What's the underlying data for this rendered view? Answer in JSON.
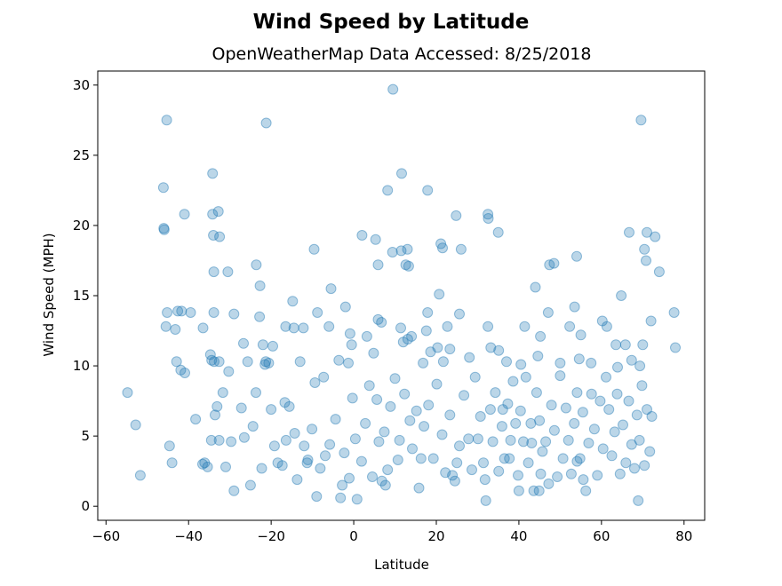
{
  "chart_data": {
    "type": "scatter",
    "title": "Wind Speed by Latitude",
    "subtitle": "OpenWeatherMap Data Accessed: 8/25/2018",
    "xlabel": "Latitude",
    "ylabel": "Wind Speed (MPH)",
    "xlim": [
      -62,
      85
    ],
    "ylim": [
      -1.0,
      31.0
    ],
    "xticks": [
      -60,
      -40,
      -20,
      0,
      20,
      40,
      60,
      80
    ],
    "yticks": [
      0,
      5,
      10,
      15,
      20,
      25,
      30
    ],
    "grid": false,
    "marker_color": "#1f77b4",
    "marker_alpha": 0.3,
    "series": [
      {
        "points": [
          [
            9.5,
            29.7
          ],
          [
            -45.3,
            27.5
          ],
          [
            -21.2,
            27.3
          ],
          [
            69.6,
            27.5
          ],
          [
            -46.1,
            22.7
          ],
          [
            -34.2,
            23.7
          ],
          [
            8.2,
            22.5
          ],
          [
            17.9,
            22.5
          ],
          [
            11.6,
            23.7
          ],
          [
            -41.0,
            20.8
          ],
          [
            -34.2,
            20.8
          ],
          [
            -32.8,
            21.0
          ],
          [
            -46.0,
            19.8
          ],
          [
            -45.9,
            19.7
          ],
          [
            -34.0,
            19.3
          ],
          [
            -32.5,
            19.2
          ],
          [
            2.0,
            19.3
          ],
          [
            5.3,
            19.0
          ],
          [
            24.8,
            20.7
          ],
          [
            32.5,
            20.8
          ],
          [
            32.6,
            20.5
          ],
          [
            35.0,
            19.5
          ],
          [
            66.7,
            19.5
          ],
          [
            71.0,
            19.5
          ],
          [
            73.0,
            19.2
          ],
          [
            9.4,
            18.1
          ],
          [
            11.5,
            18.2
          ],
          [
            13.0,
            18.3
          ],
          [
            21.1,
            18.7
          ],
          [
            21.5,
            18.4
          ],
          [
            26.0,
            18.3
          ],
          [
            -9.6,
            18.3
          ],
          [
            70.4,
            18.3
          ],
          [
            74.0,
            16.7
          ],
          [
            70.8,
            17.5
          ],
          [
            54.0,
            17.8
          ],
          [
            -33.9,
            16.7
          ],
          [
            -30.5,
            16.7
          ],
          [
            -23.6,
            17.2
          ],
          [
            5.9,
            17.2
          ],
          [
            12.6,
            17.2
          ],
          [
            13.3,
            17.1
          ],
          [
            47.4,
            17.2
          ],
          [
            48.5,
            17.3
          ],
          [
            -22.7,
            15.7
          ],
          [
            -5.5,
            15.5
          ],
          [
            20.7,
            15.1
          ],
          [
            44.0,
            15.6
          ],
          [
            64.8,
            15.0
          ],
          [
            -45.2,
            13.8
          ],
          [
            -42.6,
            13.9
          ],
          [
            -41.7,
            13.9
          ],
          [
            -39.5,
            13.8
          ],
          [
            -33.9,
            13.8
          ],
          [
            -29.0,
            13.7
          ],
          [
            -22.8,
            13.5
          ],
          [
            -14.8,
            14.6
          ],
          [
            -8.8,
            13.8
          ],
          [
            -2.0,
            14.2
          ],
          [
            5.9,
            13.3
          ],
          [
            6.7,
            13.1
          ],
          [
            17.9,
            13.8
          ],
          [
            25.6,
            13.7
          ],
          [
            47.1,
            13.8
          ],
          [
            53.5,
            14.2
          ],
          [
            60.2,
            13.2
          ],
          [
            77.6,
            13.8
          ],
          [
            72.0,
            13.2
          ],
          [
            -45.5,
            12.8
          ],
          [
            -43.2,
            12.6
          ],
          [
            -36.5,
            12.7
          ],
          [
            -26.7,
            11.6
          ],
          [
            -22.0,
            11.5
          ],
          [
            -16.5,
            12.8
          ],
          [
            -14.5,
            12.7
          ],
          [
            -12.2,
            12.7
          ],
          [
            -6.0,
            12.8
          ],
          [
            -0.9,
            12.3
          ],
          [
            -0.5,
            11.5
          ],
          [
            3.2,
            12.1
          ],
          [
            11.4,
            12.7
          ],
          [
            14.0,
            12.1
          ],
          [
            17.6,
            12.5
          ],
          [
            22.7,
            12.8
          ],
          [
            32.5,
            12.8
          ],
          [
            41.4,
            12.8
          ],
          [
            45.2,
            12.1
          ],
          [
            52.3,
            12.8
          ],
          [
            55.0,
            12.2
          ],
          [
            61.3,
            12.8
          ],
          [
            63.5,
            11.5
          ],
          [
            65.8,
            11.5
          ],
          [
            70.0,
            11.5
          ],
          [
            77.9,
            11.3
          ],
          [
            -42.9,
            10.3
          ],
          [
            -41.9,
            9.7
          ],
          [
            -40.9,
            9.5
          ],
          [
            -34.7,
            10.8
          ],
          [
            -34.4,
            10.4
          ],
          [
            -33.8,
            10.3
          ],
          [
            -32.6,
            10.3
          ],
          [
            -30.3,
            9.6
          ],
          [
            -25.7,
            10.3
          ],
          [
            -21.3,
            10.3
          ],
          [
            -20.6,
            10.2
          ],
          [
            -19.6,
            11.4
          ],
          [
            -13.0,
            10.3
          ],
          [
            -3.6,
            10.4
          ],
          [
            -1.3,
            10.2
          ],
          [
            4.8,
            10.9
          ],
          [
            12.0,
            11.7
          ],
          [
            13.1,
            11.9
          ],
          [
            16.8,
            10.2
          ],
          [
            18.6,
            11.0
          ],
          [
            20.3,
            11.3
          ],
          [
            21.7,
            10.3
          ],
          [
            23.3,
            11.2
          ],
          [
            28.0,
            10.6
          ],
          [
            33.2,
            11.3
          ],
          [
            35.1,
            11.1
          ],
          [
            37.0,
            10.3
          ],
          [
            40.5,
            10.1
          ],
          [
            44.6,
            10.7
          ],
          [
            50.0,
            10.2
          ],
          [
            54.6,
            10.5
          ],
          [
            57.5,
            10.2
          ],
          [
            63.9,
            9.9
          ],
          [
            67.3,
            10.4
          ],
          [
            69.3,
            10.0
          ],
          [
            -54.8,
            8.1
          ],
          [
            -52.8,
            5.8
          ],
          [
            -51.7,
            2.2
          ],
          [
            -44.6,
            4.3
          ],
          [
            -44.0,
            3.1
          ],
          [
            -38.3,
            6.2
          ],
          [
            -36.1,
            3.1
          ],
          [
            -35.4,
            2.8
          ],
          [
            -34.5,
            4.7
          ],
          [
            -33.6,
            6.5
          ],
          [
            -33.1,
            7.1
          ],
          [
            -32.6,
            4.7
          ],
          [
            -31.7,
            8.1
          ],
          [
            -29.7,
            4.6
          ],
          [
            -29.0,
            1.1
          ],
          [
            -27.2,
            7.0
          ],
          [
            -25.0,
            1.5
          ],
          [
            -24.4,
            5.7
          ],
          [
            -23.7,
            8.1
          ],
          [
            -22.3,
            2.7
          ],
          [
            -21.5,
            10.1
          ],
          [
            -20.0,
            6.9
          ],
          [
            -19.2,
            4.3
          ],
          [
            -18.4,
            3.1
          ],
          [
            -17.3,
            2.9
          ],
          [
            -16.7,
            7.4
          ],
          [
            -16.4,
            4.7
          ],
          [
            -15.6,
            7.1
          ],
          [
            -14.3,
            5.2
          ],
          [
            -13.7,
            1.9
          ],
          [
            -12.0,
            4.3
          ],
          [
            -11.1,
            3.3
          ],
          [
            -10.1,
            5.5
          ],
          [
            -9.4,
            8.8
          ],
          [
            -9.0,
            0.7
          ],
          [
            -8.1,
            2.7
          ],
          [
            -7.3,
            9.2
          ],
          [
            -5.8,
            4.4
          ],
          [
            -4.4,
            6.2
          ],
          [
            -3.2,
            0.6
          ],
          [
            -2.3,
            3.8
          ],
          [
            -1.1,
            2.0
          ],
          [
            -0.3,
            7.7
          ],
          [
            0.4,
            4.8
          ],
          [
            0.8,
            0.5
          ],
          [
            1.9,
            3.2
          ],
          [
            2.8,
            5.9
          ],
          [
            3.8,
            8.6
          ],
          [
            4.5,
            2.1
          ],
          [
            5.6,
            7.6
          ],
          [
            6.1,
            4.6
          ],
          [
            6.8,
            1.8
          ],
          [
            7.4,
            5.3
          ],
          [
            8.2,
            2.6
          ],
          [
            8.9,
            7.1
          ],
          [
            10.0,
            9.1
          ],
          [
            10.7,
            3.3
          ],
          [
            12.3,
            8.0
          ],
          [
            13.6,
            6.1
          ],
          [
            14.2,
            4.1
          ],
          [
            15.2,
            6.8
          ],
          [
            16.3,
            3.4
          ],
          [
            17.0,
            5.7
          ],
          [
            18.1,
            7.2
          ],
          [
            19.3,
            3.4
          ],
          [
            20.1,
            8.7
          ],
          [
            21.4,
            5.1
          ],
          [
            22.2,
            2.4
          ],
          [
            23.3,
            6.5
          ],
          [
            24.5,
            1.8
          ],
          [
            25.6,
            4.3
          ],
          [
            26.7,
            7.9
          ],
          [
            27.8,
            4.8
          ],
          [
            28.6,
            2.6
          ],
          [
            29.4,
            9.2
          ],
          [
            30.7,
            6.4
          ],
          [
            31.4,
            3.1
          ],
          [
            32.0,
            0.4
          ],
          [
            33.1,
            6.9
          ],
          [
            33.7,
            4.6
          ],
          [
            34.3,
            8.1
          ],
          [
            35.1,
            2.5
          ],
          [
            35.9,
            5.7
          ],
          [
            36.5,
            3.4
          ],
          [
            37.3,
            7.3
          ],
          [
            38.0,
            4.7
          ],
          [
            38.6,
            8.9
          ],
          [
            39.2,
            5.9
          ],
          [
            39.8,
            2.2
          ],
          [
            40.4,
            6.8
          ],
          [
            41.1,
            4.6
          ],
          [
            41.7,
            9.2
          ],
          [
            42.3,
            3.1
          ],
          [
            42.9,
            5.9
          ],
          [
            43.6,
            1.1
          ],
          [
            44.3,
            8.1
          ],
          [
            45.0,
            6.1
          ],
          [
            45.7,
            3.9
          ],
          [
            46.5,
            4.6
          ],
          [
            47.2,
            1.6
          ],
          [
            47.9,
            7.2
          ],
          [
            48.6,
            5.4
          ],
          [
            49.3,
            2.1
          ],
          [
            50.0,
            9.3
          ],
          [
            50.7,
            3.4
          ],
          [
            51.4,
            7.0
          ],
          [
            52.0,
            4.7
          ],
          [
            52.7,
            2.3
          ],
          [
            53.4,
            5.9
          ],
          [
            54.1,
            8.1
          ],
          [
            54.8,
            3.4
          ],
          [
            55.5,
            6.7
          ],
          [
            56.2,
            1.1
          ],
          [
            56.9,
            4.5
          ],
          [
            57.6,
            8.0
          ],
          [
            58.3,
            5.5
          ],
          [
            59.0,
            2.2
          ],
          [
            59.7,
            7.5
          ],
          [
            60.4,
            4.1
          ],
          [
            61.1,
            9.2
          ],
          [
            61.8,
            6.9
          ],
          [
            62.5,
            3.6
          ],
          [
            63.2,
            5.3
          ],
          [
            63.8,
            8.0
          ],
          [
            64.5,
            2.3
          ],
          [
            65.2,
            5.8
          ],
          [
            65.9,
            3.1
          ],
          [
            66.6,
            7.5
          ],
          [
            67.3,
            4.4
          ],
          [
            68.0,
            2.7
          ],
          [
            68.6,
            6.5
          ],
          [
            69.2,
            4.7
          ],
          [
            69.8,
            8.6
          ],
          [
            70.4,
            2.9
          ],
          [
            71.0,
            6.9
          ],
          [
            71.7,
            3.9
          ],
          [
            72.2,
            6.4
          ],
          [
            68.9,
            0.4
          ],
          [
            54.1,
            3.2
          ],
          [
            55.6,
            1.9
          ],
          [
            45.3,
            2.3
          ],
          [
            43.1,
            4.5
          ],
          [
            37.7,
            3.4
          ],
          [
            36.1,
            6.9
          ],
          [
            25.0,
            3.1
          ],
          [
            23.9,
            2.2
          ],
          [
            15.8,
            1.3
          ],
          [
            11.1,
            4.7
          ],
          [
            7.7,
            1.5
          ],
          [
            -2.8,
            1.5
          ],
          [
            -6.9,
            3.6
          ],
          [
            -11.3,
            3.1
          ],
          [
            -26.5,
            4.9
          ],
          [
            -31.0,
            2.8
          ],
          [
            -36.6,
            3.0
          ],
          [
            30.1,
            4.8
          ],
          [
            31.8,
            1.9
          ],
          [
            40.0,
            1.1
          ],
          [
            44.9,
            1.1
          ]
        ]
      }
    ]
  }
}
